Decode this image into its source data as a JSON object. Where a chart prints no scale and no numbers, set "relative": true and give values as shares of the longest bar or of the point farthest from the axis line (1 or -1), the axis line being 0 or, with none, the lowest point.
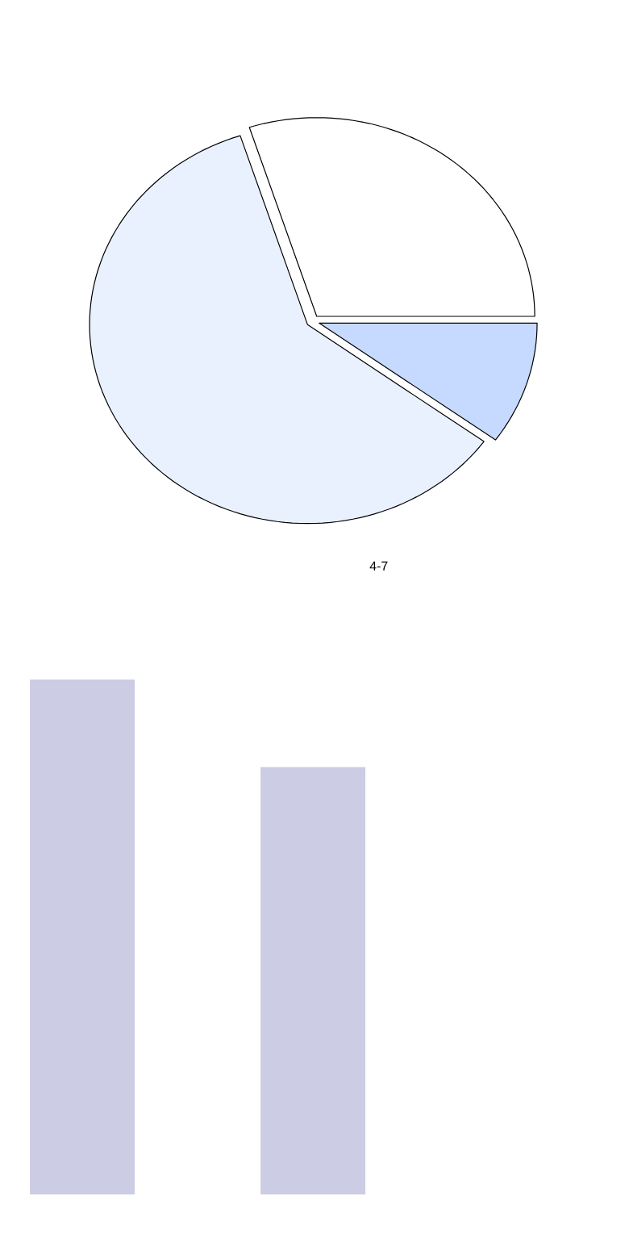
{
  "chart_data": [
    {
      "type": "pie",
      "categories": [
        null,
        null,
        null
      ],
      "values": [
        30,
        60,
        10
      ],
      "colors": [
        "#ffffff",
        "#eaf1fe",
        "#c6d9fe"
      ],
      "annotations": [
        "4-7"
      ]
    },
    {
      "type": "bar",
      "categories": [
        null,
        null
      ],
      "values": [
        1,
        0.83
      ],
      "color": "#cccce4",
      "relative": true
    }
  ]
}
